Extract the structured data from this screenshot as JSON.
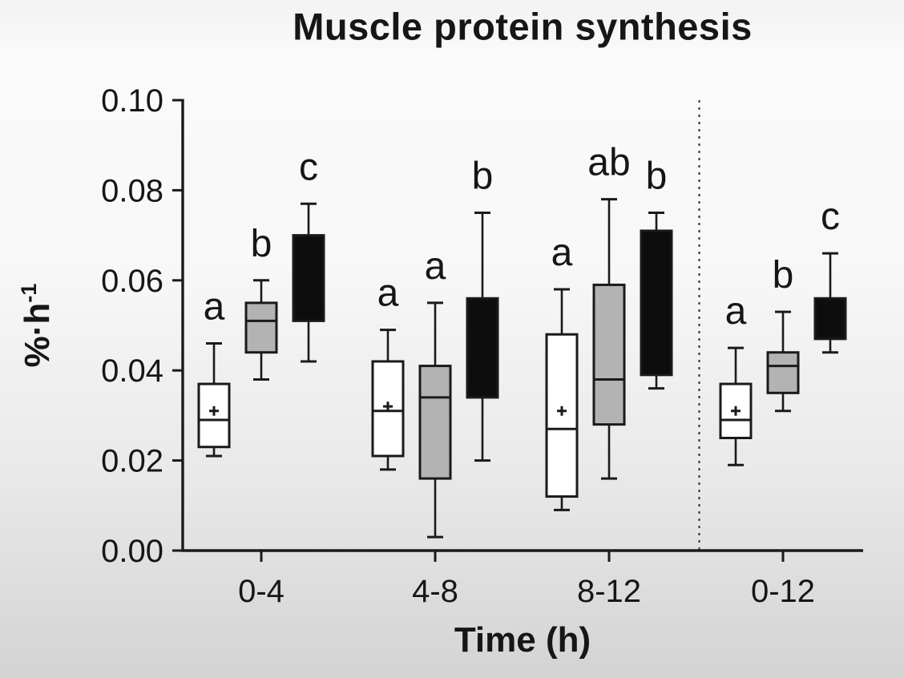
{
  "chart_data": {
    "type": "boxplot",
    "title": "Muscle protein synthesis",
    "xlabel": "Time (h)",
    "ylabel": "%·h⁻¹",
    "ylabel_main": "%·h",
    "ylabel_sup": "-1",
    "ylim": [
      0,
      0.1
    ],
    "y_ticks": [
      0.0,
      0.02,
      0.04,
      0.06,
      0.08,
      0.1
    ],
    "y_tick_labels": [
      "0.00",
      "0.02",
      "0.04",
      "0.06",
      "0.08",
      "0.10"
    ],
    "categories": [
      "0-4",
      "4-8",
      "8-12",
      "0-12"
    ],
    "separator_between": [
      "8-12",
      "0-12"
    ],
    "grid": false,
    "legend": "none",
    "mean_marker": "+",
    "colors": {
      "axis": "#1a1a1a",
      "separator": "#2a2a2a"
    },
    "series": [
      {
        "name": "white",
        "fill": "#ffffff",
        "boxes": [
          {
            "category": "0-4",
            "letter": "a",
            "whisker_low": 0.021,
            "q1": 0.023,
            "median": 0.029,
            "q3": 0.037,
            "whisker_high": 0.046,
            "mean": 0.031
          },
          {
            "category": "4-8",
            "letter": "a",
            "whisker_low": 0.018,
            "q1": 0.021,
            "median": 0.031,
            "q3": 0.042,
            "whisker_high": 0.049,
            "mean": 0.032
          },
          {
            "category": "8-12",
            "letter": "a",
            "whisker_low": 0.009,
            "q1": 0.012,
            "median": 0.027,
            "q3": 0.048,
            "whisker_high": 0.058,
            "mean": 0.031
          },
          {
            "category": "0-12",
            "letter": "a",
            "whisker_low": 0.019,
            "q1": 0.025,
            "median": 0.029,
            "q3": 0.037,
            "whisker_high": 0.045,
            "mean": 0.031
          }
        ]
      },
      {
        "name": "grey",
        "fill": "#b3b3b3",
        "boxes": [
          {
            "category": "0-4",
            "letter": "b",
            "whisker_low": 0.038,
            "q1": 0.044,
            "median": 0.051,
            "q3": 0.055,
            "whisker_high": 0.06,
            "mean": null
          },
          {
            "category": "4-8",
            "letter": "a",
            "whisker_low": 0.003,
            "q1": 0.016,
            "median": 0.034,
            "q3": 0.041,
            "whisker_high": 0.055,
            "mean": null
          },
          {
            "category": "8-12",
            "letter": "ab",
            "whisker_low": 0.016,
            "q1": 0.028,
            "median": 0.038,
            "q3": 0.059,
            "whisker_high": 0.078,
            "mean": null
          },
          {
            "category": "0-12",
            "letter": "b",
            "whisker_low": 0.031,
            "q1": 0.035,
            "median": 0.041,
            "q3": 0.044,
            "whisker_high": 0.053,
            "mean": null
          }
        ]
      },
      {
        "name": "black",
        "fill": "#0d0d0d",
        "boxes": [
          {
            "category": "0-4",
            "letter": "c",
            "whisker_low": 0.042,
            "q1": 0.051,
            "median": null,
            "q3": 0.07,
            "whisker_high": 0.077,
            "mean": null
          },
          {
            "category": "4-8",
            "letter": "b",
            "whisker_low": 0.02,
            "q1": 0.034,
            "median": null,
            "q3": 0.056,
            "whisker_high": 0.075,
            "mean": null
          },
          {
            "category": "8-12",
            "letter": "b",
            "whisker_low": 0.036,
            "q1": 0.039,
            "median": null,
            "q3": 0.071,
            "whisker_high": 0.075,
            "mean": null
          },
          {
            "category": "0-12",
            "letter": "c",
            "whisker_low": 0.044,
            "q1": 0.047,
            "median": null,
            "q3": 0.056,
            "whisker_high": 0.066,
            "mean": null
          }
        ]
      }
    ]
  }
}
